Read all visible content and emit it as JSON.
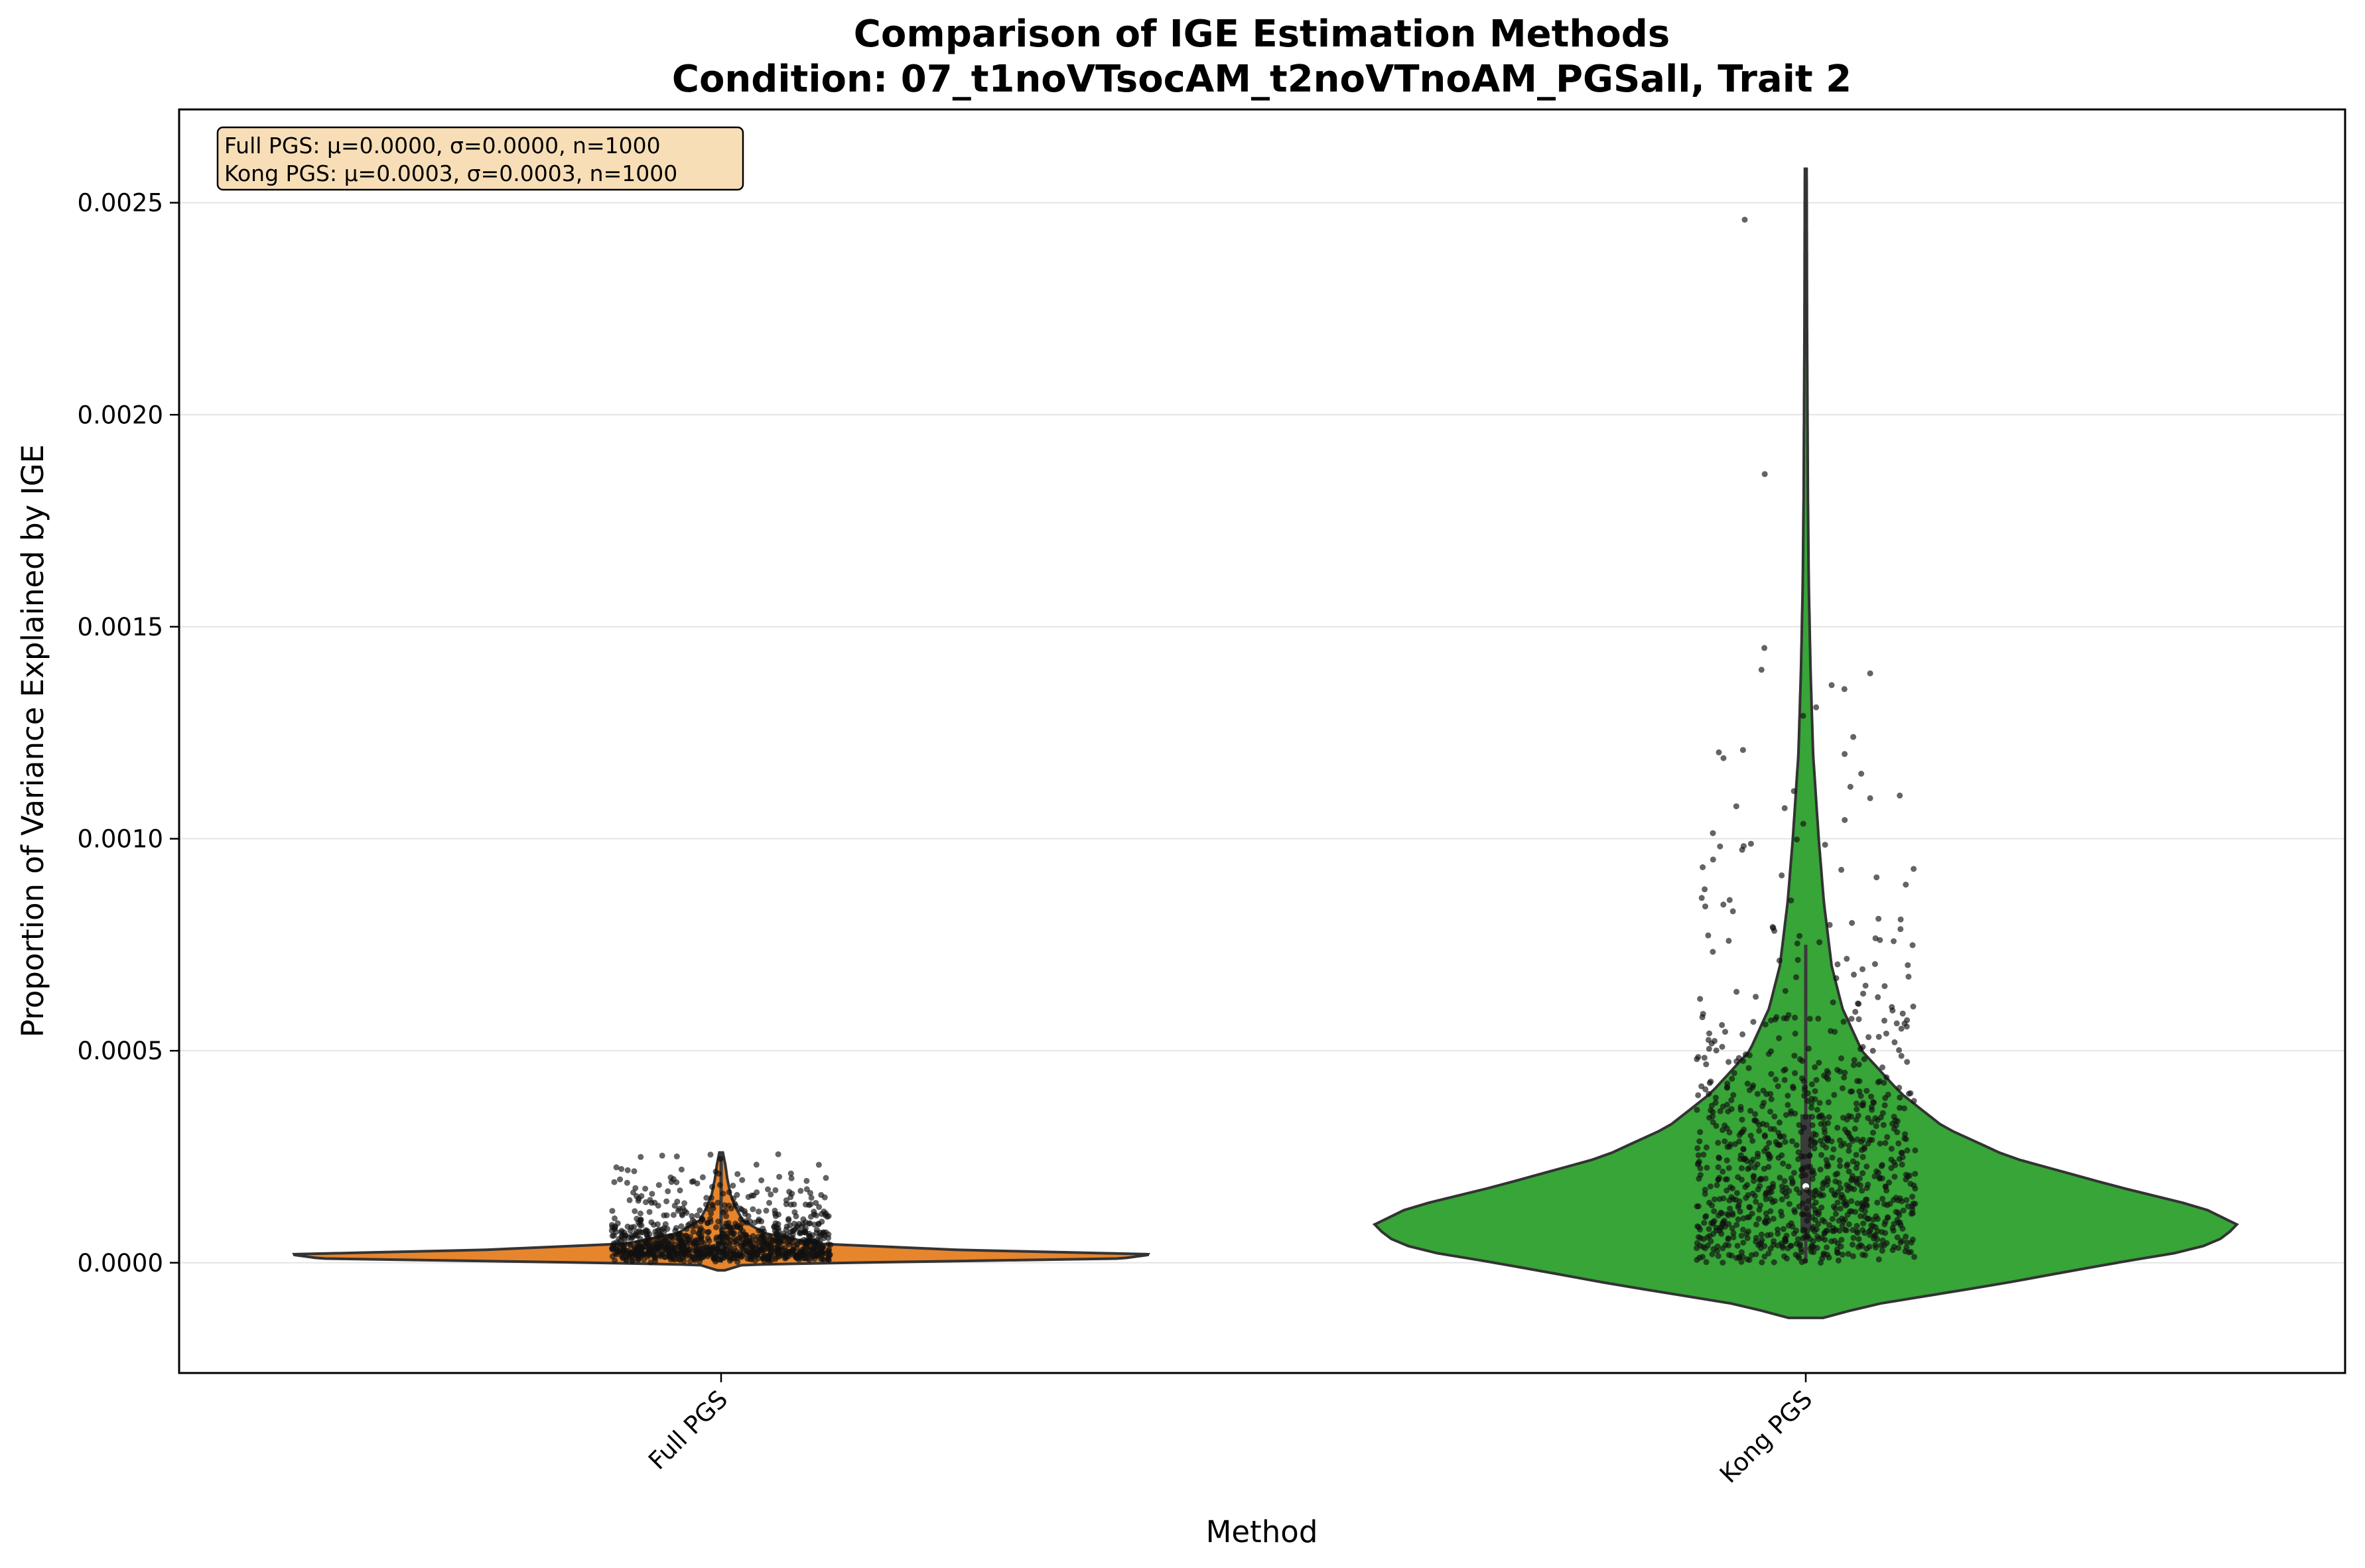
{
  "chart_data": {
    "type": "violin",
    "title_line1": "Comparison of IGE Estimation Methods",
    "title_line2": "Condition: 07_t1noVTsocAM_t2noVTnoAM_PGSall, Trait 2",
    "xlabel": "Method",
    "ylabel": "Proportion of Variance Explained by IGE",
    "categories": [
      "Full PGS",
      "Kong PGS"
    ],
    "ylim": [
      -0.00026,
      0.00272
    ],
    "yticks": [
      0.0,
      0.0005,
      0.001,
      0.0015,
      0.002,
      0.0025
    ],
    "ytick_labels": [
      "0.0000",
      "0.0005",
      "0.0010",
      "0.0015",
      "0.0020",
      "0.0025"
    ],
    "grid": "horizontal",
    "stats_box": {
      "position": "top-left",
      "lines": [
        "Full PGS: μ=0.0000, σ=0.0000, n=1000",
        "Kong PGS: μ=0.0003, σ=0.0003, n=1000"
      ]
    },
    "series": [
      {
        "name": "Full PGS",
        "color": "#e67e22",
        "n": 1000,
        "mean": 0.0,
        "sd": 0.0,
        "max": 0.00026,
        "min": 0.0,
        "quartiles": [
          1e-05,
          2e-05,
          5e-05
        ],
        "violin_profile": [
          [
            -1.8e-05,
            0.008
          ],
          [
            -5e-06,
            0.05
          ],
          [
            0.0,
            0.29
          ],
          [
            1e-05,
            0.93
          ],
          [
            2e-05,
            1.0
          ],
          [
            3e-05,
            0.56
          ],
          [
            4.5e-05,
            0.22
          ],
          [
            7e-05,
            0.1
          ],
          [
            0.0001,
            0.05
          ],
          [
            0.00013,
            0.034
          ],
          [
            0.00016,
            0.022
          ],
          [
            0.0002,
            0.014
          ],
          [
            0.00023,
            0.01
          ],
          [
            0.00026,
            0.004
          ]
        ],
        "point_density": [
          [
            0.0,
            0.0
          ],
          [
            2e-05,
            1.0
          ],
          [
            5e-05,
            0.55
          ],
          [
            0.0001,
            0.15
          ],
          [
            0.00015,
            0.06
          ],
          [
            0.0002,
            0.025
          ],
          [
            0.00026,
            0.005
          ]
        ],
        "extra_points": [
          0.000245,
          0.000255,
          0.00022,
          0.00021,
          0.0002,
          0.000195
        ]
      },
      {
        "name": "Kong PGS",
        "color": "#2ca02c",
        "n": 1000,
        "mean": 0.0003,
        "sd": 0.0003,
        "max": 0.00258,
        "min": 0.0,
        "quartiles": [
          8e-05,
          0.00018,
          0.00035
        ],
        "whisker": [
          0.0,
          0.00075
        ],
        "violin_profile": [
          [
            -0.00013,
            0.04
          ],
          [
            -0.0001,
            0.15
          ],
          [
            -5e-05,
            0.45
          ],
          [
            0.0,
            0.72
          ],
          [
            3e-05,
            0.9
          ],
          [
            6e-05,
            0.97
          ],
          [
            9e-05,
            1.0
          ],
          [
            0.00013,
            0.92
          ],
          [
            0.00018,
            0.72
          ],
          [
            0.00025,
            0.47
          ],
          [
            0.00032,
            0.32
          ],
          [
            0.0004,
            0.22
          ],
          [
            0.0005,
            0.13
          ],
          [
            0.0006,
            0.085
          ],
          [
            0.0007,
            0.06
          ],
          [
            0.00085,
            0.042
          ],
          [
            0.001,
            0.03
          ],
          [
            0.0012,
            0.017
          ],
          [
            0.0014,
            0.011
          ],
          [
            0.0016,
            0.007
          ],
          [
            0.0018,
            0.005
          ],
          [
            0.002,
            0.004
          ],
          [
            0.0022,
            0.003
          ],
          [
            0.0024,
            0.0025
          ],
          [
            0.00258,
            0.002
          ]
        ],
        "point_density": [
          [
            0.0,
            0.6
          ],
          [
            5e-05,
            1.0
          ],
          [
            0.0001,
            1.0
          ],
          [
            0.00015,
            0.88
          ],
          [
            0.0002,
            0.75
          ],
          [
            0.0003,
            0.55
          ],
          [
            0.0004,
            0.38
          ],
          [
            0.0005,
            0.22
          ],
          [
            0.0006,
            0.12
          ],
          [
            0.0007,
            0.08
          ],
          [
            0.0008,
            0.055
          ],
          [
            0.0009,
            0.04
          ],
          [
            0.001,
            0.028
          ],
          [
            0.0011,
            0.02
          ],
          [
            0.0012,
            0.015
          ],
          [
            0.0013,
            0.01
          ],
          [
            0.00145,
            0.004
          ]
        ],
        "extra_points": [
          0.00246,
          0.00186,
          0.00145,
          0.00139,
          0.00131,
          0.00124
        ]
      }
    ]
  }
}
